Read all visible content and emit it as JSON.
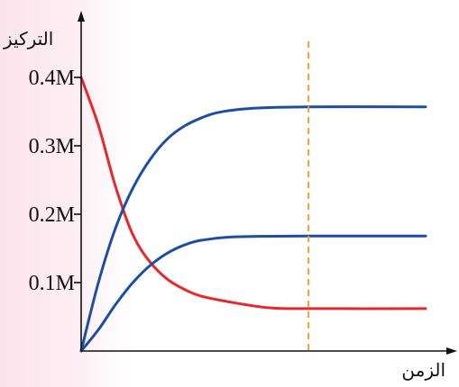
{
  "chart_data": {
    "type": "line",
    "title": "",
    "xlabel": "الزمن",
    "ylabel": "التركيز",
    "y_ticks": [
      0.1,
      0.2,
      0.3,
      0.4
    ],
    "y_tick_labels": [
      "0.1M",
      "0.2M",
      "0.3M",
      "0.4M"
    ],
    "ylim": [
      0,
      0.4
    ],
    "x_axis_numbered": false,
    "grid": false,
    "legend": "none",
    "series": [
      {
        "color": "#e8262b",
        "points": [
          [
            0,
            0.4
          ],
          [
            0.05,
            0.33
          ],
          [
            0.1,
            0.24
          ],
          [
            0.15,
            0.17
          ],
          [
            0.2,
            0.13
          ],
          [
            0.25,
            0.105
          ],
          [
            0.3,
            0.09
          ],
          [
            0.35,
            0.08
          ],
          [
            0.45,
            0.07
          ],
          [
            0.55,
            0.063
          ],
          [
            0.66,
            0.062
          ],
          [
            1.0,
            0.062
          ]
        ]
      },
      {
        "color": "#1c4fa3",
        "points": [
          [
            0,
            0
          ],
          [
            0.05,
            0.1
          ],
          [
            0.1,
            0.18
          ],
          [
            0.15,
            0.238
          ],
          [
            0.2,
            0.28
          ],
          [
            0.25,
            0.31
          ],
          [
            0.3,
            0.329
          ],
          [
            0.35,
            0.341
          ],
          [
            0.4,
            0.349
          ],
          [
            0.5,
            0.355
          ],
          [
            0.66,
            0.357
          ],
          [
            1.0,
            0.357
          ]
        ]
      },
      {
        "color": "#1c4fa3",
        "points": [
          [
            0,
            0
          ],
          [
            0.05,
            0.031
          ],
          [
            0.1,
            0.068
          ],
          [
            0.15,
            0.1
          ],
          [
            0.2,
            0.125
          ],
          [
            0.25,
            0.143
          ],
          [
            0.3,
            0.155
          ],
          [
            0.35,
            0.162
          ],
          [
            0.45,
            0.167
          ],
          [
            0.66,
            0.168
          ],
          [
            1.0,
            0.168
          ]
        ]
      }
    ],
    "marker_line": {
      "x": 0.66,
      "color": "#f0a030",
      "style": "dashed"
    },
    "background": {
      "left_band_color": "#fbe4ec"
    }
  }
}
